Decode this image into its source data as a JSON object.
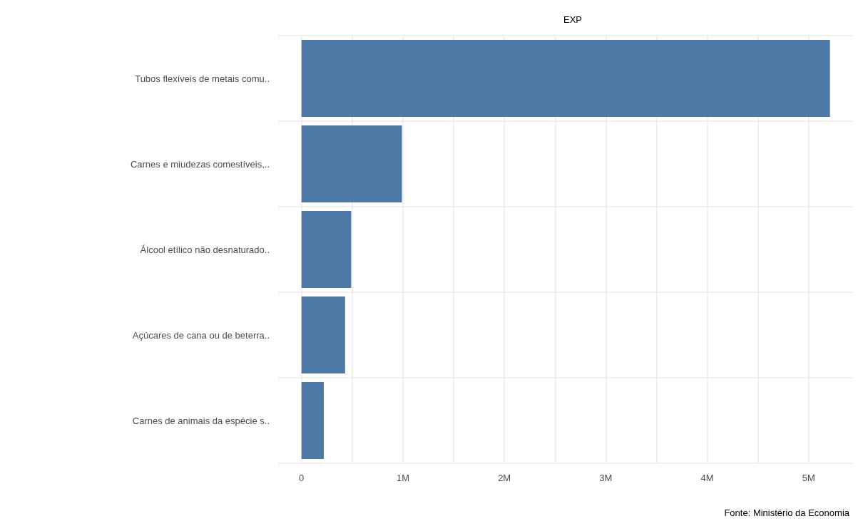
{
  "chart_data": {
    "type": "bar",
    "orientation": "horizontal",
    "title": "EXP",
    "categories": [
      "Tubos flexíveis de metais comu..",
      "Carnes e miudezas comestíveis,..",
      "Álcool etílico não desnaturado..",
      "Açúcares de cana ou de beterra..",
      "Carnes de animais da espécie s.."
    ],
    "values": [
      5210000,
      990000,
      490000,
      430000,
      220000
    ],
    "color": "#4e79a7",
    "xlim": [
      -230000,
      5430000
    ],
    "xticks": [
      0,
      {
        "value": 500000,
        "label": null
      },
      {
        "value": 1000000,
        "label": "1M"
      },
      {
        "value": 1500000,
        "label": null
      },
      {
        "value": 2000000,
        "label": "2M"
      },
      {
        "value": 2500000,
        "label": null
      },
      {
        "value": 3000000,
        "label": "3M"
      },
      {
        "value": 3500000,
        "label": null
      },
      {
        "value": 4000000,
        "label": "4M"
      },
      {
        "value": 4500000,
        "label": null
      },
      {
        "value": 5000000,
        "label": "5M"
      }
    ],
    "grid": true,
    "annotations": [
      "Fonte: Ministério da Economia"
    ]
  }
}
